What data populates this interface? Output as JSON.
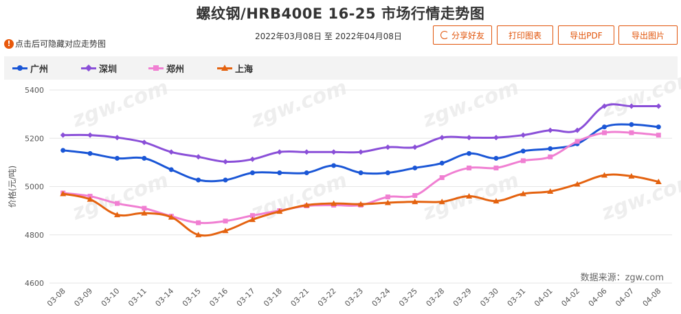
{
  "title": "螺纹钢/HRB400E 16-25 市场行情走势图",
  "hint": {
    "icon": "!",
    "text": "点击后可隐藏对应走势图"
  },
  "date_range": {
    "start": "2022年03月08日",
    "sep": "至",
    "end": "2022年04月08日"
  },
  "buttons": {
    "share": "分享好友",
    "print": "打印图表",
    "pdf": "导出PDF",
    "image": "导出图片"
  },
  "watermark": "zgw.com",
  "source": "数据来源：zgw.com",
  "colors": {
    "广州": "#1a56d6",
    "深圳": "#8a4fd8",
    "郑州": "#f07fd2",
    "上海": "#e4620f"
  },
  "chart_data": {
    "type": "line",
    "categories": [
      "03-08",
      "03-09",
      "03-10",
      "03-11",
      "03-14",
      "03-15",
      "03-16",
      "03-17",
      "03-18",
      "03-21",
      "03-22",
      "03-23",
      "03-24",
      "03-25",
      "03-28",
      "03-29",
      "03-30",
      "03-31",
      "04-01",
      "04-02",
      "04-06",
      "04-07",
      "04-08"
    ],
    "ylabel": "价格(元/吨)",
    "ylim": [
      4600,
      5400
    ],
    "yticks": [
      4600,
      4800,
      5000,
      5200,
      5400
    ],
    "grid": true,
    "legend_position": "top-left",
    "series": [
      {
        "name": "广州",
        "marker": "circle",
        "values": [
          5150,
          5137,
          5117,
          5117,
          5070,
          5027,
          5027,
          5057,
          5057,
          5057,
          5087,
          5057,
          5057,
          5077,
          5097,
          5137,
          5117,
          5147,
          5157,
          5177,
          5247,
          5257,
          5247
        ]
      },
      {
        "name": "深圳",
        "marker": "diamond",
        "values": [
          5213,
          5213,
          5203,
          5183,
          5143,
          5123,
          5103,
          5113,
          5143,
          5143,
          5143,
          5143,
          5163,
          5163,
          5203,
          5203,
          5203,
          5213,
          5233,
          5233,
          5333,
          5333,
          5333
        ]
      },
      {
        "name": "郑州",
        "marker": "square",
        "values": [
          4973,
          4960,
          4930,
          4910,
          4877,
          4850,
          4857,
          4880,
          4900,
          4920,
          4923,
          4923,
          4957,
          4963,
          5037,
          5077,
          5077,
          5107,
          5123,
          5187,
          5223,
          5223,
          5213
        ]
      },
      {
        "name": "上海",
        "marker": "triangle",
        "values": [
          4970,
          4947,
          4883,
          4890,
          4873,
          4800,
          4817,
          4863,
          4897,
          4923,
          4930,
          4927,
          4933,
          4937,
          4937,
          4960,
          4940,
          4970,
          4980,
          5010,
          5047,
          5043,
          5020
        ]
      }
    ]
  }
}
